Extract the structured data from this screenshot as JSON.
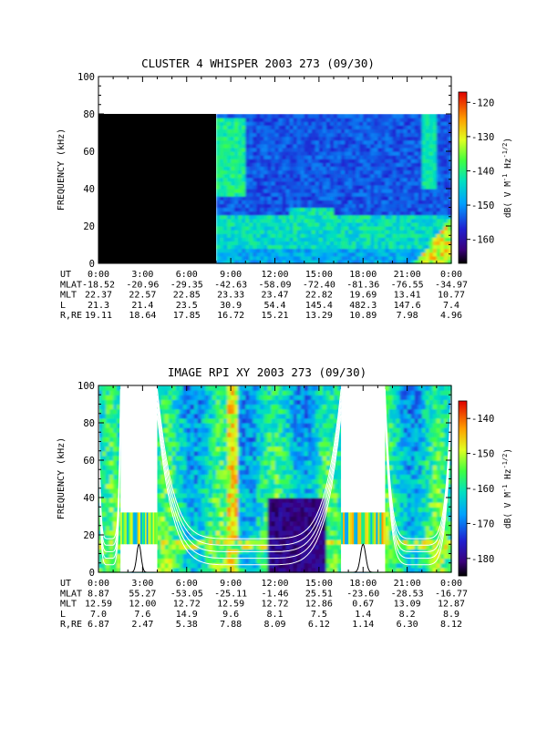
{
  "chart_data": [
    {
      "type": "heatmap",
      "title": "CLUSTER 4 WHISPER 2003 273 (09/30)",
      "ylabel": "FREQUENCY (kHz)",
      "xlabel": "",
      "ylim": [
        0,
        100
      ],
      "y_ticks": [
        0,
        20,
        40,
        60,
        80,
        100
      ],
      "data_top_khz": 80,
      "no_data_until_hours": 8.0,
      "colorbar": {
        "label": "dB( V M⁻¹ Hz⁻¹ᐟ²)",
        "label_parts": [
          "dB( V M",
          "-1",
          " Hz",
          "-1/2",
          ")"
        ],
        "range": [
          -167,
          -117
        ],
        "ticks": [
          -120,
          -130,
          -140,
          -150,
          -160
        ]
      },
      "ephemeris": {
        "row_labels": [
          "UT",
          "MLAT",
          "MLT",
          "L",
          "R,RE"
        ],
        "ut": [
          "0:00",
          "3:00",
          "6:00",
          "9:00",
          "12:00",
          "15:00",
          "18:00",
          "21:00",
          "0:00"
        ],
        "mlat": [
          "-18.52",
          "-20.96",
          "-29.35",
          "-42.63",
          "-58.09",
          "-72.40",
          "-81.36",
          "-76.55",
          "-34.97"
        ],
        "mlt": [
          "22.37",
          "22.57",
          "22.85",
          "23.33",
          "23.47",
          "22.82",
          "19.69",
          "13.41",
          "10.77"
        ],
        "l": [
          "21.3",
          "21.4",
          "23.5",
          "30.9",
          "54.4",
          "145.4",
          "482.3",
          "147.6",
          "7.4"
        ],
        "r": [
          "19.11",
          "18.64",
          "17.85",
          "16.72",
          "15.21",
          "13.29",
          "10.89",
          "7.98",
          "4.96"
        ]
      }
    },
    {
      "type": "heatmap",
      "title": "IMAGE RPI XY 2003 273 (09/30)",
      "ylabel": "FREQUENCY (kHz)",
      "xlabel": "",
      "ylim": [
        0,
        100
      ],
      "y_ticks": [
        0,
        20,
        40,
        60,
        80,
        100
      ],
      "data_gaps_hours": [
        [
          1.5,
          4.0
        ],
        [
          16.5,
          19.5
        ]
      ],
      "colorbar": {
        "label": "dB( V M⁻¹ Hz⁻¹ᐟ²)",
        "label_parts": [
          "dB( V M",
          "-1",
          " Hz",
          "-1/2",
          ")"
        ],
        "range": [
          -185,
          -135
        ],
        "ticks": [
          -140,
          -150,
          -160,
          -170,
          -180
        ]
      },
      "ephemeris": {
        "row_labels": [
          "UT",
          "MLAT",
          "MLT",
          "L",
          "R,RE"
        ],
        "ut": [
          "0:00",
          "3:00",
          "6:00",
          "9:00",
          "12:00",
          "15:00",
          "18:00",
          "21:00",
          "0:00"
        ],
        "mlat": [
          "8.87",
          "55.27",
          "-53.05",
          "-25.11",
          "-1.46",
          "25.51",
          "-23.60",
          "-28.53",
          "-16.77"
        ],
        "mlt": [
          "12.59",
          "12.00",
          "12.72",
          "12.59",
          "12.72",
          "12.86",
          "0.67",
          "13.09",
          "12.87"
        ],
        "l": [
          "7.0",
          "7.6",
          "14.9",
          "9.6",
          "8.1",
          "7.5",
          "1.4",
          "8.2",
          "8.9"
        ],
        "r": [
          "6.87",
          "2.47",
          "5.38",
          "7.88",
          "8.09",
          "6.12",
          "1.14",
          "6.30",
          "8.12"
        ]
      }
    }
  ]
}
